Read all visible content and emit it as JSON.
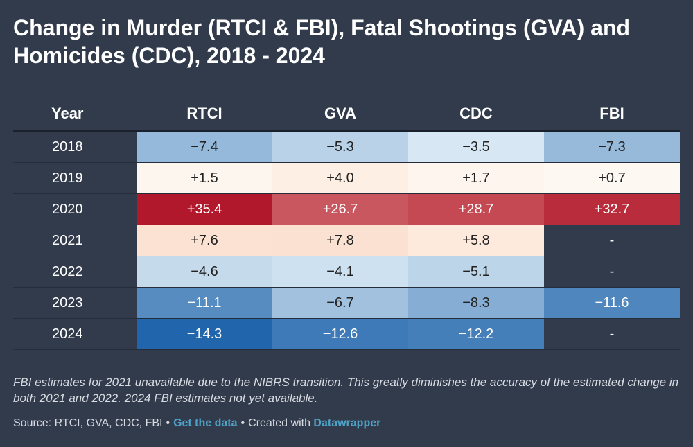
{
  "title": "Change in Murder (RTCI & FBI), Fatal Shootings (GVA) and Homicides (CDC), 2018 - 2024",
  "chart_data": {
    "type": "table",
    "title": "Change in Murder (RTCI & FBI), Fatal Shootings (GVA) and Homicides (CDC), 2018 - 2024",
    "columns": [
      "Year",
      "RTCI",
      "GVA",
      "CDC",
      "FBI"
    ],
    "rows": [
      {
        "year": "2018",
        "values": [
          "−7.4",
          "−5.3",
          "−3.5",
          "−7.3"
        ]
      },
      {
        "year": "2019",
        "values": [
          "+1.5",
          "+4.0",
          "+1.7",
          "+0.7"
        ]
      },
      {
        "year": "2020",
        "values": [
          "+35.4",
          "+26.7",
          "+28.7",
          "+32.7"
        ]
      },
      {
        "year": "2021",
        "values": [
          "+7.6",
          "+7.8",
          "+5.8",
          "-"
        ]
      },
      {
        "year": "2022",
        "values": [
          "−4.6",
          "−4.1",
          "−5.1",
          "-"
        ]
      },
      {
        "year": "2023",
        "values": [
          "−11.1",
          "−6.7",
          "−8.3",
          "−11.6"
        ]
      },
      {
        "year": "2024",
        "values": [
          "−14.3",
          "−12.6",
          "−12.2",
          "-"
        ]
      }
    ],
    "color_scale": {
      "negative_strong": "#2166ac",
      "negative_light": "#d6e7f3",
      "neutral": "#fdfaf5",
      "positive_light": "#fde6d6",
      "positive_strong": "#b2182b",
      "missing": "#323b4b"
    }
  },
  "footnote": "FBI estimates for 2021 unavailable due to the NIBRS transition. This greatly diminishes the accuracy of the estimated change in both 2021 and 2022. 2024 FBI estimates not yet available.",
  "source": {
    "prefix": "Source: RTCI, GVA, CDC, FBI",
    "separator": "•",
    "data_link": "Get the data",
    "created_with": "Created with",
    "tool_link": "Datawrapper"
  }
}
